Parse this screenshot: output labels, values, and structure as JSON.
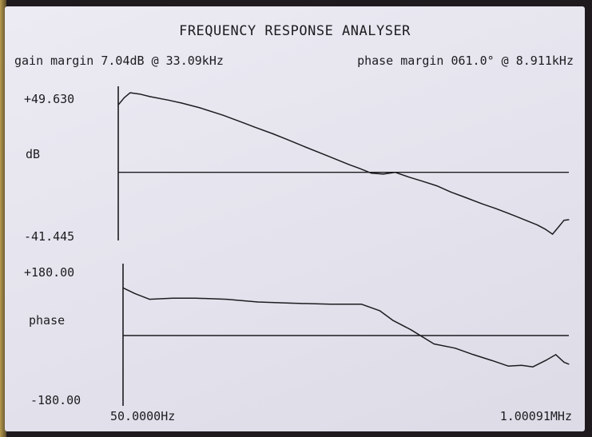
{
  "title": "FREQUENCY RESPONSE ANALYSER",
  "gain_margin_text": "gain margin 7.04dB @ 33.09kHz",
  "phase_margin_text": "phase margin 061.0° @ 8.911kHz",
  "labels": {
    "db_max": "+49.630",
    "db_axis": "dB",
    "db_min": "-41.445",
    "phase_max": "+180.00",
    "phase_axis": "phase",
    "phase_min": "-180.00",
    "x_min": "50.0000Hz",
    "x_max": "1.00091MHz"
  },
  "colors": {
    "screen": "#e8e6ee",
    "ink": "#1c1c20"
  },
  "chart_data": [
    {
      "type": "line",
      "title": "",
      "xlabel": "",
      "ylabel": "dB",
      "xscale": "log",
      "xlim": [
        50,
        1000910
      ],
      "ylim": [
        -41.445,
        49.63
      ],
      "grid": false,
      "reference_line_y": 0,
      "series": [
        {
          "values_x": [
            50,
            57,
            65,
            80,
            100,
            150,
            200,
            300,
            500,
            800,
            1000,
            1500,
            2000,
            3000,
            5000,
            8000,
            10000,
            13000,
            17000,
            22000,
            30000,
            40000,
            55000,
            75000,
            100000,
            150000,
            200000,
            300000,
            400000,
            500000,
            600000,
            700000,
            800000,
            900000,
            1000910
          ],
          "values_y": [
            42,
            46.5,
            49.6,
            48.8,
            47.2,
            45,
            43.2,
            40.2,
            35.6,
            30.6,
            28.2,
            24.0,
            20.7,
            16.0,
            10.2,
            4.8,
            2.5,
            -0.5,
            -1.1,
            0.0,
            -3.0,
            -5.5,
            -8.4,
            -12.3,
            -15.3,
            -19.7,
            -22.5,
            -26.9,
            -30.2,
            -32.8,
            -35.5,
            -38.5,
            -34.0,
            -29.9,
            -29.5
          ]
        }
      ]
    },
    {
      "type": "line",
      "title": "",
      "xlabel": "",
      "ylabel": "phase",
      "xscale": "log",
      "xlim": [
        50,
        1000910
      ],
      "ylim": [
        -180,
        180
      ],
      "grid": false,
      "reference_line_y": 0,
      "series": [
        {
          "values_x": [
            50,
            65,
            90,
            150,
            250,
            500,
            1000,
            2000,
            5000,
            10000,
            15000,
            20000,
            30000,
            50000,
            80000,
            120000,
            180000,
            260000,
            350000,
            450000,
            600000,
            750000,
            900000,
            1000910
          ],
          "values_y": [
            125,
            110,
            95,
            98,
            98,
            95,
            88,
            85,
            82,
            82,
            65,
            40,
            15,
            -22,
            -33,
            -50,
            -65,
            -80,
            -78,
            -82,
            -65,
            -50,
            -70,
            -75
          ]
        }
      ]
    }
  ]
}
